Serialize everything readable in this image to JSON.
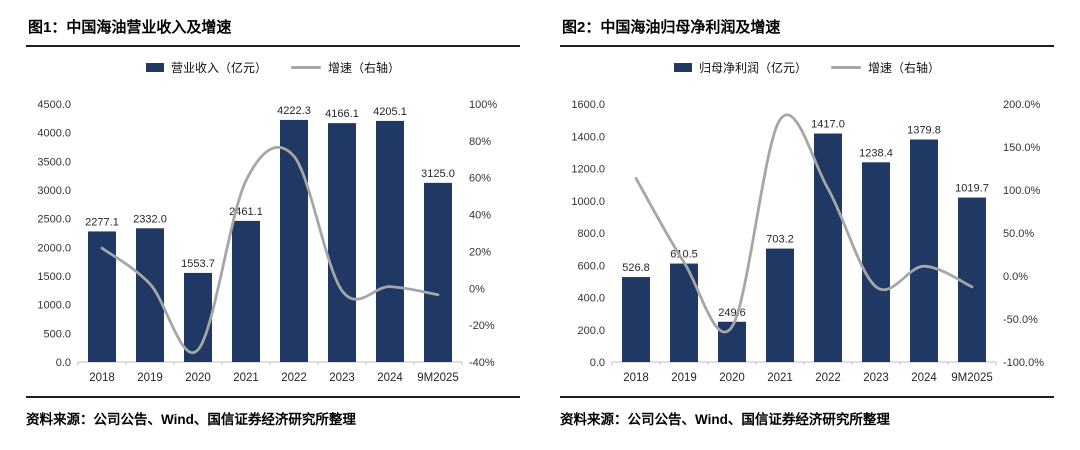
{
  "colors": {
    "bar": "#1F3864",
    "line": "#A6A6A6",
    "axis": "#BFBFBF"
  },
  "panels": [
    {
      "source": "资料来源：公司公告、Wind、国信证券经济研究所整理"
    },
    {
      "source": "资料来源：公司公告、Wind、国信证券经济研究所整理"
    }
  ],
  "chart_data": [
    {
      "type": "bar+line",
      "title": "图1：中国海油营业收入及增速",
      "categories": [
        "2018",
        "2019",
        "2020",
        "2021",
        "2022",
        "2023",
        "2024",
        "9M2025"
      ],
      "series": [
        {
          "name": "营业收入（亿元）",
          "type": "bar",
          "axis": "left",
          "values": [
            2277.1,
            2332.0,
            1553.7,
            2461.1,
            4222.3,
            4166.1,
            4205.1,
            3125.0
          ],
          "value_labels": [
            "2277.1",
            "2332.0",
            "1553.7",
            "2461.1",
            "4222.3",
            "4166.1",
            "4205.1",
            "3125.0"
          ]
        },
        {
          "name": "增速（右轴）",
          "type": "line",
          "axis": "right",
          "values": [
            21.8,
            2.4,
            -33.4,
            58.4,
            71.6,
            -1.3,
            0.9,
            -3.5
          ]
        }
      ],
      "left_axis": {
        "min": 0,
        "max": 4500,
        "labels": [
          "4500.0",
          "4000.0",
          "3500.0",
          "3000.0",
          "2500.0",
          "2000.0",
          "1500.0",
          "1000.0",
          "500.0",
          "0.0"
        ]
      },
      "right_axis": {
        "min": -40,
        "max": 100,
        "labels": [
          "100%",
          "80%",
          "60%",
          "40%",
          "20%",
          "0%",
          "-20%",
          "-40%"
        ]
      },
      "grid": false,
      "legend_position": "top"
    },
    {
      "type": "bar+line",
      "title": "图2：中国海油归母净利润及增速",
      "categories": [
        "2018",
        "2019",
        "2020",
        "2021",
        "2022",
        "2023",
        "2024",
        "9M2025"
      ],
      "series": [
        {
          "name": "归母净利润（亿元）",
          "type": "bar",
          "axis": "left",
          "values": [
            526.8,
            610.5,
            249.6,
            703.2,
            1417.0,
            1238.4,
            1379.8,
            1019.7
          ],
          "value_labels": [
            "526.8",
            "610.5",
            "249.6",
            "703.2",
            "1417.0",
            "1238.4",
            "1379.8",
            "1019.7"
          ]
        },
        {
          "name": "增速（右轴）",
          "type": "line",
          "axis": "right",
          "values": [
            113.5,
            15.9,
            -59.1,
            181.8,
            101.5,
            -12.6,
            11.4,
            -12.6
          ]
        }
      ],
      "left_axis": {
        "min": 0,
        "max": 1600,
        "labels": [
          "1600.0",
          "1400.0",
          "1200.0",
          "1000.0",
          "800.0",
          "600.0",
          "400.0",
          "200.0",
          "0.0"
        ]
      },
      "right_axis": {
        "min": -100,
        "max": 200,
        "labels": [
          "200.0%",
          "150.0%",
          "100.0%",
          "50.0%",
          "0.0%",
          "-50.0%",
          "-100.0%"
        ]
      },
      "grid": false,
      "legend_position": "top"
    }
  ]
}
